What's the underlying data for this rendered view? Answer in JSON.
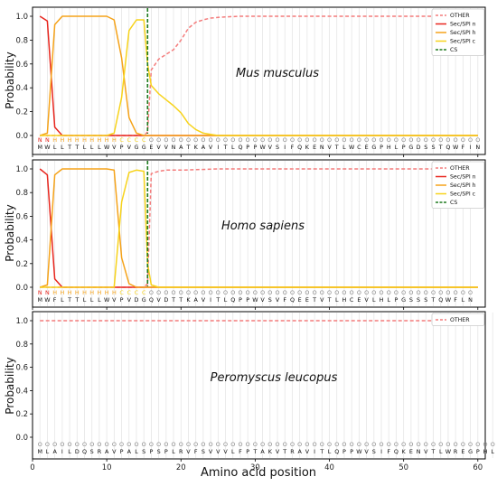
{
  "chart_data": {
    "type": "line",
    "xlabel": "Amino acid position",
    "ylabel": "Probability",
    "xlim": [
      0,
      61
    ],
    "ylim": [
      -0.08,
      1.08
    ],
    "xticks": [
      0,
      10,
      20,
      30,
      40,
      50,
      60
    ],
    "yticks": [
      "0.0",
      "0.2",
      "0.4",
      "0.6",
      "0.8",
      "1.0"
    ],
    "colors": {
      "OTHER": "#f47c7c",
      "Sec/SPI n": "#e8261e",
      "Sec/SPI h": "#f5a31a",
      "Sec/SPI c": "#f7d31c",
      "CS": "#1f7a1f",
      "pred_N": "#e8261e",
      "pred_H": "#f5a31a",
      "pred_C": "#f7d31c",
      "pred_O": "#888888"
    },
    "panels": [
      {
        "title": "Mus musculus",
        "sequence": "MWLLTTLLLWVPVGGEVVNATKAVITLQPPWVSIFQKENVTLWCEGPHLPGDSSTQWFIN",
        "prediction": "NNHHHHHHHHHCCCCOOOOOOOOOOOOOOOOOOOOOOOOOOOOOOOOOOOOOOOOOOOOO",
        "cs_position": 15.5,
        "legend": [
          "OTHER",
          "Sec/SPI n",
          "Sec/SPI h",
          "Sec/SPI c",
          "CS"
        ],
        "series": [
          {
            "name": "OTHER",
            "style": "dashed",
            "x": [
              1,
              2,
              3,
              4,
              5,
              6,
              7,
              8,
              9,
              10,
              11,
              12,
              13,
              14,
              15,
              15.5,
              16,
              17,
              18,
              19,
              20,
              21,
              22,
              23,
              24,
              25,
              26,
              28,
              30,
              35,
              40,
              45,
              50,
              55,
              60
            ],
            "y": [
              0,
              0,
              0,
              0,
              0,
              0,
              0,
              0,
              0,
              0,
              0,
              0,
              0,
              0,
              0,
              0.03,
              0.55,
              0.64,
              0.68,
              0.72,
              0.8,
              0.9,
              0.95,
              0.97,
              0.985,
              0.99,
              0.995,
              1,
              1,
              1,
              1,
              1,
              1,
              1,
              1
            ]
          },
          {
            "name": "Sec/SPI n",
            "style": "solid",
            "x": [
              1,
              2,
              3,
              4,
              5,
              6,
              60
            ],
            "y": [
              1.0,
              0.96,
              0.07,
              0,
              0,
              0,
              0
            ]
          },
          {
            "name": "Sec/SPI h",
            "style": "solid",
            "x": [
              1,
              2,
              3,
              4,
              5,
              6,
              7,
              8,
              9,
              10,
              11,
              12,
              13,
              14,
              15,
              16,
              17,
              60
            ],
            "y": [
              0,
              0.02,
              0.93,
              1.0,
              1.0,
              1.0,
              1.0,
              1.0,
              1.0,
              1.0,
              0.97,
              0.65,
              0.15,
              0.02,
              0,
              0,
              0,
              0
            ]
          },
          {
            "name": "Sec/SPI c",
            "style": "solid",
            "x": [
              1,
              10,
              11,
              12,
              13,
              14,
              15,
              15.5,
              16,
              17,
              18,
              19,
              20,
              21,
              22,
              23,
              24,
              25,
              30,
              60
            ],
            "y": [
              0,
              0,
              0.02,
              0.32,
              0.88,
              0.97,
              0.97,
              0.6,
              0.42,
              0.35,
              0.3,
              0.25,
              0.19,
              0.1,
              0.05,
              0.02,
              0.01,
              0,
              0,
              0
            ]
          }
        ]
      },
      {
        "title": "Homo sapiens",
        "sequence": "MWFLTTLLLWVPVDGQVDTTKAVITLQPPWVSVFQEETVTLHCEVLHLPGSSSTQWFLN",
        "prediction": "NNHHHHHHHHHCCCCOOOOOOOOOOOOOOOOOOOOOOOOOOOOOOOOOOOOOOOOOOOO",
        "cs_position": 15.5,
        "legend": [
          "OTHER",
          "Sec/SPI n",
          "Sec/SPI h",
          "Sec/SPI c",
          "CS"
        ],
        "series": [
          {
            "name": "OTHER",
            "style": "dashed",
            "x": [
              1,
              2,
              3,
              4,
              5,
              6,
              7,
              8,
              9,
              10,
              11,
              12,
              13,
              14,
              15,
              15.5,
              16,
              17,
              18,
              20,
              25,
              30,
              40,
              50,
              60
            ],
            "y": [
              0,
              0,
              0,
              0,
              0,
              0,
              0,
              0,
              0,
              0,
              0,
              0,
              0,
              0,
              0,
              0.03,
              0.96,
              0.98,
              0.99,
              0.99,
              1,
              1,
              1,
              1,
              1
            ]
          },
          {
            "name": "Sec/SPI n",
            "style": "solid",
            "x": [
              1,
              2,
              3,
              4,
              5,
              6,
              60
            ],
            "y": [
              1.0,
              0.95,
              0.07,
              0,
              0,
              0,
              0
            ]
          },
          {
            "name": "Sec/SPI h",
            "style": "solid",
            "x": [
              1,
              2,
              3,
              4,
              5,
              6,
              7,
              8,
              9,
              10,
              11,
              12,
              13,
              14,
              15,
              16,
              60
            ],
            "y": [
              0,
              0.02,
              0.95,
              1.0,
              1.0,
              1.0,
              1.0,
              1.0,
              1.0,
              1.0,
              0.99,
              0.25,
              0.03,
              0,
              0,
              0,
              0
            ]
          },
          {
            "name": "Sec/SPI c",
            "style": "solid",
            "x": [
              1,
              10,
              11,
              12,
              13,
              14,
              15,
              15.5,
              16,
              17,
              60
            ],
            "y": [
              0,
              0,
              0,
              0.72,
              0.97,
              0.99,
              0.98,
              0.2,
              0.02,
              0,
              0
            ]
          }
        ]
      },
      {
        "title": "Peromyscus leucopus",
        "sequence": "MLAILDQSRAVPALSPSPLRVFSVVVLFPTAKVTRAVITLQPPWVSIFQKENVTLWREGPHL",
        "prediction": "OOOOOOOOOOOOOOOOOOOOOOOOOOOOOOOOOOOOOOOOOOOOOOOOOOOOOOOOOOOOOO",
        "cs_position": null,
        "legend": [
          "OTHER"
        ],
        "series": [
          {
            "name": "OTHER",
            "style": "dashed",
            "x": [
              1,
              60
            ],
            "y": [
              1.0,
              1.0
            ]
          }
        ]
      }
    ]
  }
}
